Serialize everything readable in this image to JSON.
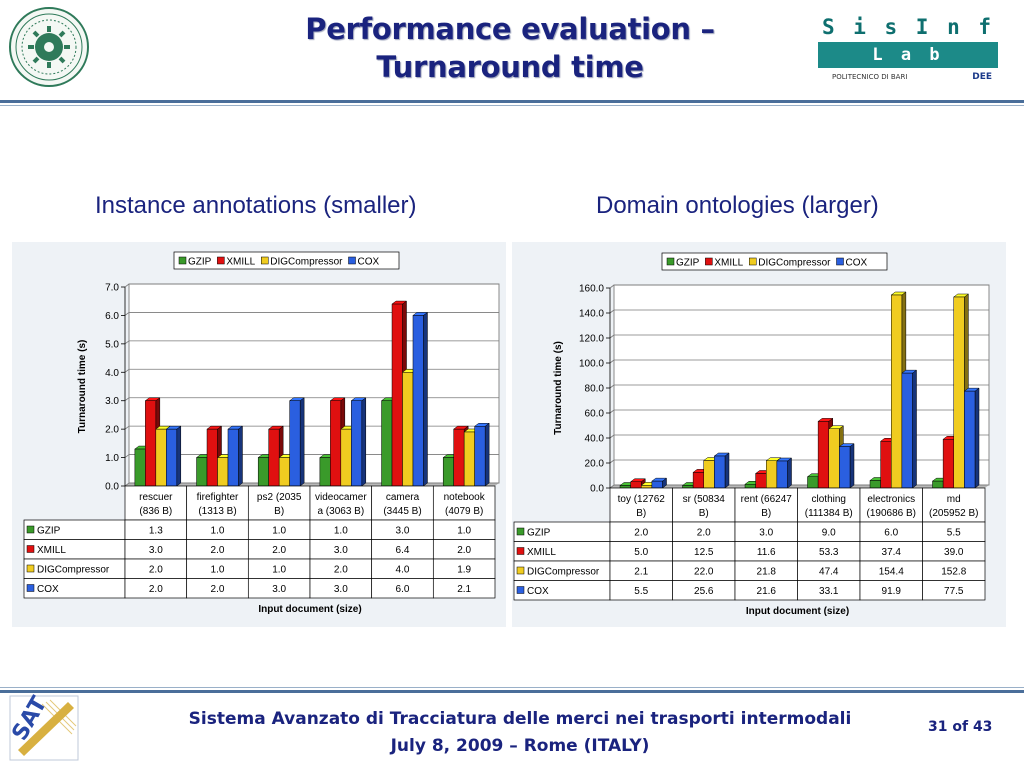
{
  "header": {
    "title_line1": "Performance evaluation –",
    "title_line2": "Turnaround time",
    "lab_logo": {
      "line1": "S i s I n f",
      "line2": "L a b",
      "footer_left": "POLITECNICO DI BARI",
      "footer_right": "DEE"
    }
  },
  "subtitles": {
    "left": "Instance annotations (smaller)",
    "right": "Domain ontologies (larger)"
  },
  "colors": {
    "accent": "#1a237e",
    "rule": "#4a6e9a",
    "lab": "#1c8a88",
    "gzip": "#3a9a2a",
    "xmill": "#e01010",
    "digcompressor": "#f0cc20",
    "cox": "#2a5fe0"
  },
  "chart_data": [
    {
      "type": "bar",
      "ylabel": "Turnaround time (s)",
      "xlabel": "Input document (size)",
      "ylim": [
        0,
        7
      ],
      "yticks": [
        "0.0",
        "1.0",
        "2.0",
        "3.0",
        "4.0",
        "5.0",
        "6.0",
        "7.0"
      ],
      "grid": true,
      "legend": "top",
      "categories": [
        [
          "rescuer",
          "(836 B)"
        ],
        [
          "firefighter",
          "(1313 B)"
        ],
        [
          "ps2 (2035",
          "B)"
        ],
        [
          "videocamer",
          "a (3063 B)"
        ],
        [
          "camera",
          "(3445 B)"
        ],
        [
          "notebook",
          "(4079 B)"
        ]
      ],
      "series": [
        {
          "name": "GZIP",
          "values": [
            1.3,
            1.0,
            1.0,
            1.0,
            3.0,
            1.0
          ],
          "labels": [
            "1.3",
            "1.0",
            "1.0",
            "1.0",
            "3.0",
            "1.0"
          ]
        },
        {
          "name": "XMILL",
          "values": [
            3.0,
            2.0,
            2.0,
            3.0,
            6.4,
            2.0
          ],
          "labels": [
            "3.0",
            "2.0",
            "2.0",
            "3.0",
            "6.4",
            "2.0"
          ]
        },
        {
          "name": "DIGCompressor",
          "values": [
            2.0,
            1.0,
            1.0,
            2.0,
            4.0,
            1.9
          ],
          "labels": [
            "2.0",
            "1.0",
            "1.0",
            "2.0",
            "4.0",
            "1.9"
          ]
        },
        {
          "name": "COX",
          "values": [
            2.0,
            2.0,
            3.0,
            3.0,
            6.0,
            2.1
          ],
          "labels": [
            "2.0",
            "2.0",
            "3.0",
            "3.0",
            "6.0",
            "2.1"
          ]
        }
      ]
    },
    {
      "type": "bar",
      "ylabel": "Turnaround time (s)",
      "xlabel": "Input document (size)",
      "ylim": [
        0,
        160
      ],
      "yticks": [
        "0.0",
        "20.0",
        "40.0",
        "60.0",
        "80.0",
        "100.0",
        "120.0",
        "140.0",
        "160.0"
      ],
      "grid": true,
      "legend": "top",
      "categories": [
        [
          "toy (12762",
          "B)"
        ],
        [
          "sr (50834",
          "B)"
        ],
        [
          "rent (66247",
          "B)"
        ],
        [
          "clothing",
          "(111384 B)"
        ],
        [
          "electronics",
          "(190686 B)"
        ],
        [
          "md",
          "(205952 B)"
        ]
      ],
      "series": [
        {
          "name": "GZIP",
          "values": [
            2.0,
            2.0,
            3.0,
            9.0,
            6.0,
            5.5
          ],
          "labels": [
            "2.0",
            "2.0",
            "3.0",
            "9.0",
            "6.0",
            "5.5"
          ]
        },
        {
          "name": "XMILL",
          "values": [
            5.0,
            12.5,
            11.6,
            53.3,
            37.4,
            39.0
          ],
          "labels": [
            "5.0",
            "12.5",
            "11.6",
            "53.3",
            "37.4",
            "39.0"
          ]
        },
        {
          "name": "DIGCompressor",
          "values": [
            2.1,
            22.0,
            21.8,
            47.4,
            154.4,
            152.8
          ],
          "labels": [
            "2.1",
            "22.0",
            "21.8",
            "47.4",
            "154.4",
            "152.8"
          ]
        },
        {
          "name": "COX",
          "values": [
            5.5,
            25.6,
            21.6,
            33.1,
            91.9,
            77.5
          ],
          "labels": [
            "5.5",
            "25.6",
            "21.6",
            "33.1",
            "91.9",
            "77.5"
          ]
        }
      ]
    }
  ],
  "footer": {
    "line1": "Sistema Avanzato di Tracciatura delle merci nei trasporti intermodali",
    "line2": "July 8, 2009 – Rome (ITALY)",
    "page": "31 of 43",
    "sat_logo": "SAT"
  }
}
